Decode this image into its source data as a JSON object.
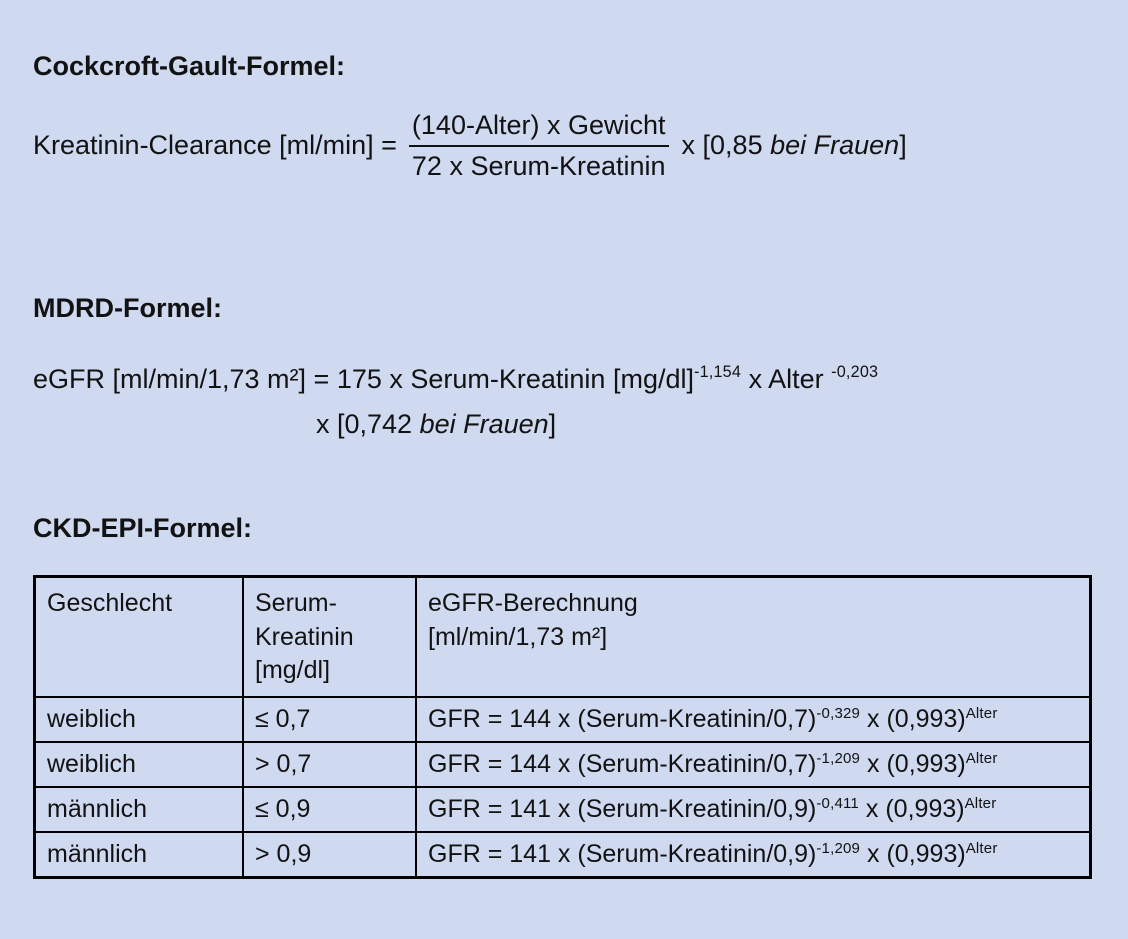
{
  "page": {
    "background": "#cfd9f0",
    "text_color": "#121212",
    "border_color": "#000000"
  },
  "cockcroft": {
    "heading": "Cockcroft-Gault-Formel:",
    "lhs": "Kreatinin-Clearance [ml/min] =",
    "numerator": "(140-Alter) x Gewicht",
    "denominator": "72 x Serum-Kreatinin",
    "factor_prefix": "x [0,85 ",
    "factor_italic": "bei Frauen",
    "factor_suffix": "]"
  },
  "mdrd": {
    "heading": "MDRD-Formel:",
    "line1_base": "eGFR [ml/min/1,73 m²] = 175 x Serum-Kreatinin [mg/dl]",
    "line1_exp1": "-1,154",
    "line1_mid": " x Alter ",
    "line1_exp2": "-0,203",
    "line2_prefix": "x [0,742 ",
    "line2_italic": "bei Frauen",
    "line2_suffix": "]"
  },
  "ckdepi": {
    "heading": "CKD-EPI-Formel:",
    "table": {
      "col_headers": [
        "Geschlecht",
        "Serum-\nKreatinin\n[mg/dl]",
        "eGFR-Berechnung\n[ml/min/1,73 m²]"
      ],
      "rows": [
        {
          "sex": "weiblich",
          "crea": "≤ 0,7",
          "f_base1": "GFR = 144 x (Serum-Kreatinin/0,7)",
          "f_exp1": "-0,329",
          "f_base2": " x (0,993)",
          "f_exp2": "Alter"
        },
        {
          "sex": "weiblich",
          "crea": "> 0,7",
          "f_base1": "GFR = 144 x (Serum-Kreatinin/0,7)",
          "f_exp1": "-1,209",
          "f_base2": " x (0,993)",
          "f_exp2": "Alter"
        },
        {
          "sex": "männlich",
          "crea": "≤ 0,9",
          "f_base1": "GFR = 141 x (Serum-Kreatinin/0,9)",
          "f_exp1": "-0,411",
          "f_base2": " x (0,993)",
          "f_exp2": "Alter"
        },
        {
          "sex": "männlich",
          "crea": "> 0,9",
          "f_base1": "GFR = 141 x (Serum-Kreatinin/0,9)",
          "f_exp1": "-1,209",
          "f_base2": " x (0,993)",
          "f_exp2": "Alter"
        }
      ]
    }
  }
}
